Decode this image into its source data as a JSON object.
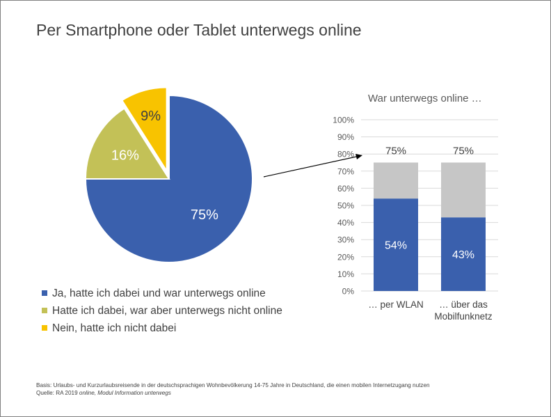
{
  "page": {
    "title": "Per Smartphone oder Tablet unterwegs online",
    "footnote_basis": "Basis: Urlaubs- und Kurzurlaubsreisende in der deutschsprachigen Wohnbevölkerung 14-75 Jahre in Deutschland, die einen mobilen Internetzugang nutzen",
    "footnote_source_prefix": "Quelle: RA 2019 ",
    "footnote_source_italic": "online, Modul Information unterwegs"
  },
  "chart_data": [
    {
      "type": "pie",
      "values": [
        75,
        16,
        9
      ],
      "data_labels": [
        "75%",
        "16%",
        "9%"
      ],
      "categories": [
        "Ja, hatte ich dabei und war unterwegs online",
        "Hatte ich dabei, war aber unterwegs nicht online",
        "Nein, hatte ich nicht dabei"
      ],
      "colors": [
        "#3a60ad",
        "#c3c157",
        "#f8c300"
      ],
      "legend_position": "bottom-left",
      "exploded": [
        false,
        false,
        true
      ]
    },
    {
      "type": "bar",
      "stacked": true,
      "title": "War unterwegs online …",
      "categories": [
        "… per WLAN",
        "… über das Mobilfunknetz"
      ],
      "category_lines": [
        [
          "… per WLAN"
        ],
        [
          "… über das",
          "Mobilfunknetz"
        ]
      ],
      "series": [
        {
          "values": [
            54,
            43
          ],
          "labels": [
            "54%",
            "43%"
          ],
          "color": "#3a60ad"
        },
        {
          "values": [
            21,
            32
          ],
          "color": "#c6c6c6"
        }
      ],
      "totals": [
        "75%",
        "75%"
      ],
      "ylim": [
        0,
        100
      ],
      "yticks": [
        "0%",
        "10%",
        "20%",
        "30%",
        "40%",
        "50%",
        "60%",
        "70%",
        "80%",
        "90%",
        "100%"
      ],
      "grid": true
    }
  ]
}
